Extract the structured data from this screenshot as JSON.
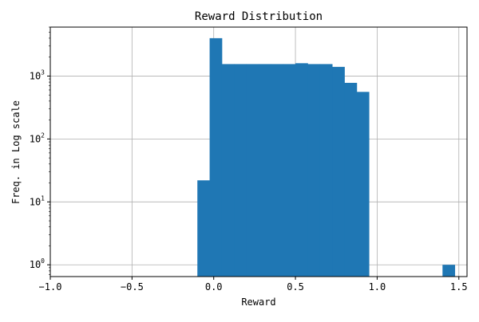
{
  "chart_data": {
    "type": "bar",
    "title": "Reward Distribution",
    "xlabel": "Reward",
    "ylabel": "Freq. in Log scale",
    "yscale": "log",
    "xlim": [
      -1.0,
      1.55
    ],
    "ylim": [
      0.65,
      6000
    ],
    "grid": true,
    "legend": "none",
    "bar_color": "#1f77b4",
    "grid_color": "#b0b0b0",
    "bin_width": 0.075,
    "x_ticks": [
      {
        "value": -1.0,
        "label": "−1.0"
      },
      {
        "value": -0.5,
        "label": "−0.5"
      },
      {
        "value": 0.0,
        "label": "0.0"
      },
      {
        "value": 0.5,
        "label": "0.5"
      },
      {
        "value": 1.0,
        "label": "1.0"
      },
      {
        "value": 1.5,
        "label": "1.5"
      }
    ],
    "y_ticks": [
      {
        "value": 1,
        "base": "10",
        "exp": "0"
      },
      {
        "value": 10,
        "base": "10",
        "exp": "1"
      },
      {
        "value": 100,
        "base": "10",
        "exp": "2"
      },
      {
        "value": 1000,
        "base": "10",
        "exp": "3"
      }
    ],
    "bins": [
      {
        "start": -0.1,
        "count": 22
      },
      {
        "start": -0.025,
        "count": 4000
      },
      {
        "start": 0.05,
        "count": 1550
      },
      {
        "start": 0.125,
        "count": 1550
      },
      {
        "start": 0.2,
        "count": 1550
      },
      {
        "start": 0.275,
        "count": 1550
      },
      {
        "start": 0.35,
        "count": 1550
      },
      {
        "start": 0.425,
        "count": 1550
      },
      {
        "start": 0.5,
        "count": 1600
      },
      {
        "start": 0.575,
        "count": 1550
      },
      {
        "start": 0.65,
        "count": 1550
      },
      {
        "start": 0.725,
        "count": 1400
      },
      {
        "start": 0.8,
        "count": 780
      },
      {
        "start": 0.875,
        "count": 560
      },
      {
        "start": 1.4,
        "count": 1
      }
    ]
  }
}
